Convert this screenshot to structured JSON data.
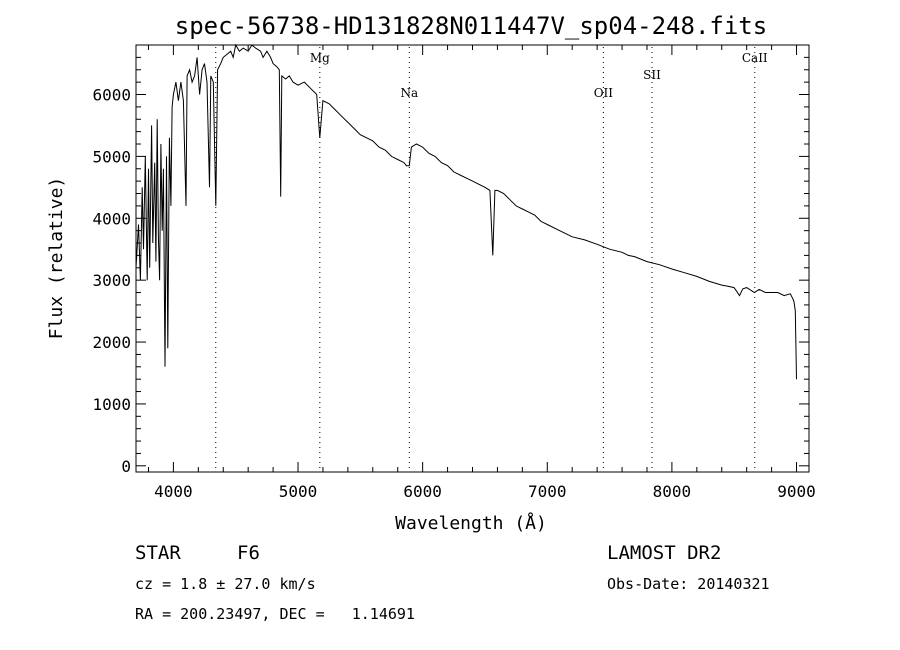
{
  "chart_data": {
    "type": "line",
    "title": "spec-56738-HD131828N011447V_sp04-248.fits",
    "xlabel": "Wavelength (Å)",
    "ylabel": "Flux (relative)",
    "xlim": [
      3700,
      9100
    ],
    "ylim": [
      -100,
      6800
    ],
    "xticks": [
      4000,
      5000,
      6000,
      7000,
      8000,
      9000
    ],
    "yticks": [
      0,
      1000,
      2000,
      3000,
      4000,
      5000,
      6000
    ],
    "grid": false,
    "line_color": "#000000",
    "line_markers": [
      {
        "label": "",
        "x": 4340
      },
      {
        "label": "Mg",
        "x": 5175
      },
      {
        "label": "Na",
        "x": 5893
      },
      {
        "label": "OII",
        "x": 7450
      },
      {
        "label": "SII",
        "x": 7840
      },
      {
        "label": "CaII",
        "x": 8665
      }
    ],
    "series": [
      {
        "x": [
          3700,
          3720,
          3735,
          3750,
          3760,
          3775,
          3790,
          3800,
          3810,
          3825,
          3835,
          3850,
          3860,
          3870,
          3880,
          3889,
          3900,
          3910,
          3920,
          3933,
          3945,
          3955,
          3968,
          3980,
          3990,
          4000,
          4020,
          4040,
          4060,
          4080,
          4101,
          4110,
          4130,
          4150,
          4170,
          4190,
          4210,
          4230,
          4250,
          4270,
          4290,
          4300,
          4320,
          4340,
          4355,
          4380,
          4400,
          4430,
          4460,
          4480,
          4500,
          4530,
          4560,
          4600,
          4630,
          4660,
          4700,
          4720,
          4750,
          4780,
          4800,
          4830,
          4850,
          4861,
          4870,
          4900,
          4930,
          4960,
          5000,
          5050,
          5100,
          5150,
          5175,
          5200,
          5250,
          5300,
          5350,
          5400,
          5450,
          5500,
          5550,
          5600,
          5650,
          5700,
          5750,
          5800,
          5850,
          5870,
          5893,
          5910,
          5950,
          6000,
          6050,
          6100,
          6150,
          6200,
          6250,
          6300,
          6350,
          6400,
          6450,
          6500,
          6540,
          6563,
          6580,
          6600,
          6650,
          6700,
          6750,
          6800,
          6850,
          6900,
          6950,
          7000,
          7100,
          7200,
          7300,
          7400,
          7500,
          7600,
          7650,
          7700,
          7800,
          7900,
          8000,
          8100,
          8200,
          8300,
          8400,
          8450,
          8498,
          8520,
          8542,
          8570,
          8600,
          8662,
          8700,
          8750,
          8800,
          8850,
          8900,
          8950,
          8970,
          8980,
          8990,
          9000
        ],
        "y": [
          3200,
          3900,
          3000,
          4500,
          3500,
          5000,
          3000,
          4800,
          3200,
          5500,
          3600,
          4900,
          3300,
          5600,
          3700,
          3000,
          5200,
          3800,
          4800,
          1600,
          5000,
          1900,
          5300,
          4200,
          5800,
          6000,
          6200,
          5900,
          6200,
          5900,
          4200,
          6300,
          6400,
          6200,
          6300,
          6600,
          6000,
          6400,
          6500,
          6200,
          4500,
          6300,
          6200,
          4200,
          6400,
          6500,
          6600,
          6650,
          6700,
          6600,
          6800,
          6700,
          6750,
          6700,
          6800,
          6750,
          6700,
          6600,
          6700,
          6600,
          6500,
          6450,
          6400,
          4350,
          6300,
          6250,
          6300,
          6200,
          6150,
          6200,
          6100,
          6000,
          5300,
          5900,
          5850,
          5750,
          5650,
          5550,
          5450,
          5350,
          5300,
          5250,
          5150,
          5100,
          5000,
          4950,
          4900,
          4850,
          4850,
          5150,
          5200,
          5150,
          5050,
          5000,
          4900,
          4850,
          4750,
          4700,
          4650,
          4600,
          4550,
          4500,
          4450,
          3400,
          4450,
          4450,
          4400,
          4300,
          4200,
          4150,
          4100,
          4050,
          3950,
          3900,
          3800,
          3700,
          3650,
          3580,
          3500,
          3450,
          3400,
          3380,
          3300,
          3250,
          3180,
          3120,
          3060,
          2980,
          2920,
          2900,
          2880,
          2820,
          2750,
          2860,
          2880,
          2800,
          2850,
          2800,
          2800,
          2800,
          2750,
          2780,
          2700,
          2650,
          2500,
          1400
        ]
      }
    ]
  },
  "info": {
    "class_label": "STAR",
    "subclass": "F6",
    "survey": "LAMOST DR2",
    "redshift_text": "cz = 1.8 ± 27.0 km/s",
    "obs_date": "Obs-Date: 20140321",
    "coords_text": "RA = 200.23497, DEC =   1.14691"
  }
}
